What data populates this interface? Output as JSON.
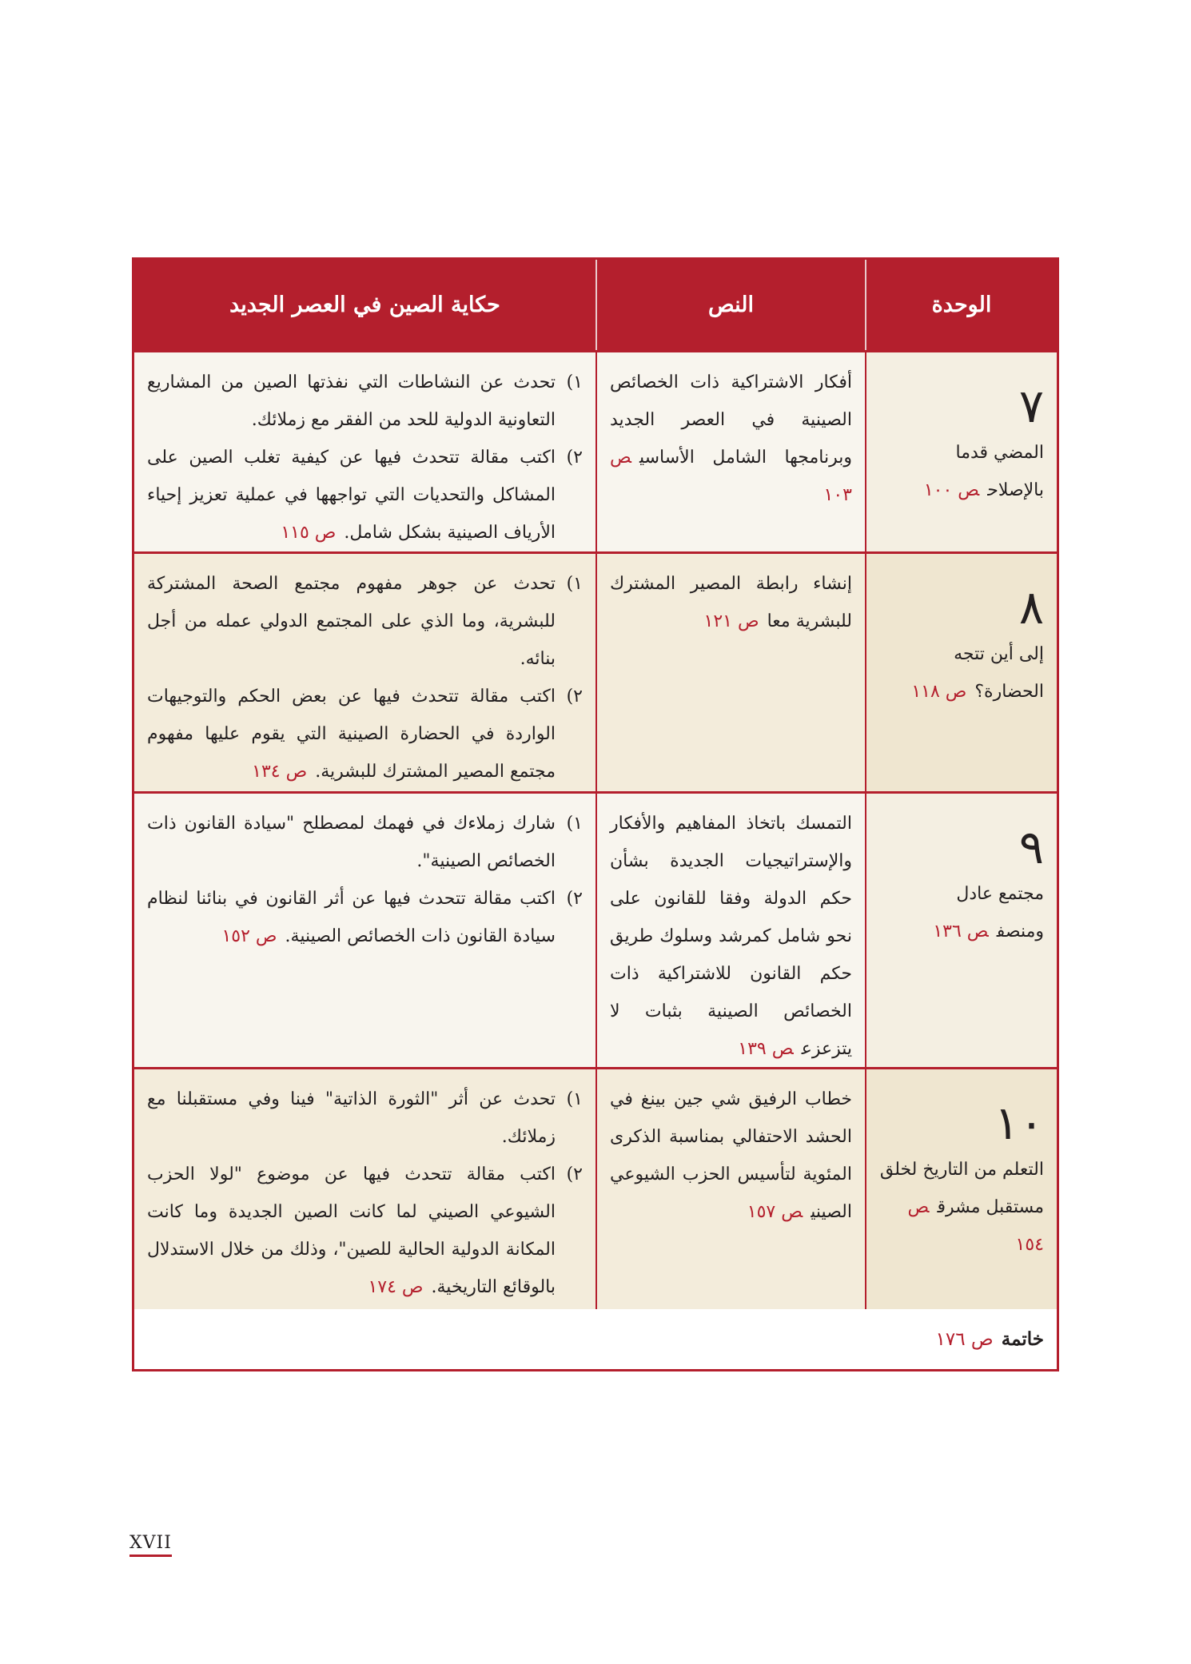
{
  "header": {
    "unit": "الوحدة",
    "text": "النص",
    "story": "حكاية الصين في العصر الجديد"
  },
  "rows": [
    {
      "number": "٧",
      "unit_title": "المضي قدما بالإصلاح",
      "unit_page": "ص ١٠٠",
      "text": "أفكار الاشتراكية ذات الخصائص الصينية في العصر الجديد وبرنامجها الشامل الأساسي",
      "text_page": "ص ١٠٣",
      "story_items": [
        {
          "n": "١)",
          "text": "تحدث عن النشاطات التي نفذتها الصين من المشاريع التعاونية الدولية للحد من الفقر مع زملائك."
        },
        {
          "n": "٢)",
          "text": "اكتب مقالة تتحدث فيها عن كيفية تغلب الصين على المشاكل والتحديات التي تواجهها في عملية تعزيز إحياء الأرياف الصينية بشكل شامل."
        }
      ],
      "story_page": "ص ١١٥",
      "shade": "light"
    },
    {
      "number": "٨",
      "unit_title": "إلى أين تتجه الحضارة؟",
      "unit_page": "ص ١١٨",
      "text": "إنشاء رابطة المصير المشترك للبشرية معا",
      "text_page": "ص ١٢١",
      "story_items": [
        {
          "n": "١)",
          "text": "تحدث عن جوهر مفهوم مجتمع الصحة المشتركة للبشرية، وما الذي على المجتمع الدولي عمله من أجل بنائه."
        },
        {
          "n": "٢)",
          "text": "اكتب مقالة تتحدث فيها عن بعض الحكم والتوجيهات الواردة في الحضارة الصينية التي يقوم عليها مفهوم مجتمع المصير المشترك للبشرية."
        }
      ],
      "story_page": "ص ١٣٤",
      "shade": "dark"
    },
    {
      "number": "٩",
      "unit_title": "مجتمع عادل ومنصف",
      "unit_page": "ص ١٣٦",
      "text": "التمسك باتخاذ المفاهيم والأفكار والإستراتيجيات الجديدة بشأن حكم الدولة وفقا للقانون على نحو شامل كمرشد وسلوك طريق حكم القانون للاشتراكية ذات الخصائص الصينية بثبات لا يتزعزع",
      "text_page": "ص ١٣٩",
      "story_items": [
        {
          "n": "١)",
          "text": "شارك زملاءك في فهمك لمصطلح \"سيادة القانون ذات الخصائص الصينية\"."
        },
        {
          "n": "٢)",
          "text": "اكتب مقالة تتحدث فيها عن أثر القانون في بنائنا لنظام سيادة القانون ذات الخصائص الصينية."
        }
      ],
      "story_page": "ص ١٥٢",
      "shade": "light"
    },
    {
      "number": "١٠",
      "unit_title": "التعلم من التاريخ لخلق مستقبل مشرق",
      "unit_page": "ص ١٥٤",
      "text": "خطاب الرفيق شي جين بينغ في الحشد الاحتفالي بمناسبة الذكرى المئوية لتأسيس الحزب الشيوعي الصيني",
      "text_page": "ص ١٥٧",
      "story_items": [
        {
          "n": "١)",
          "text": "تحدث عن أثر \"الثورة الذاتية\" فينا وفي مستقبلنا مع زملائك."
        },
        {
          "n": "٢)",
          "text": "اكتب مقالة تتحدث فيها عن موضوع \"لولا الحزب الشيوعي الصيني لما كانت الصين الجديدة وما كانت المكانة الدولية الحالية للصين\"، وذلك من خلال الاستدلال بالوقائع التاريخية."
        }
      ],
      "story_page": "ص ١٧٤",
      "shade": "dark"
    }
  ],
  "footer": {
    "label": "خاتمة",
    "page": "ص ١٧٦"
  },
  "page_number": "XVII",
  "colors": {
    "accent": "#b41f2d",
    "row_light": "#f8f5ee",
    "row_dark": "#f3ecdb"
  }
}
